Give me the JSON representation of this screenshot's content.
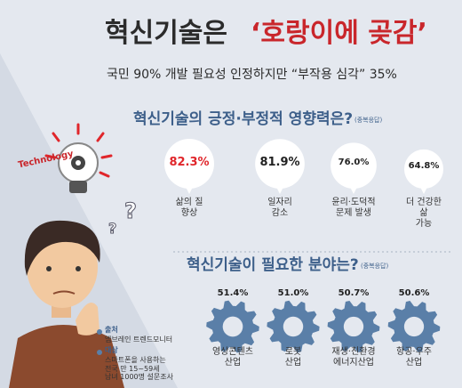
{
  "header": {
    "title_main": "혁신기술은",
    "title_quote": "‘호랑이에 곶감’",
    "subtitle": "국민 90% 개발 필요성 인정하지만 “부작용 심각” 35%"
  },
  "illustration": {
    "label": "Technology"
  },
  "notes": {
    "source_label": "출처",
    "source": "엠브레인 트렌드모니터",
    "target_label": "대상",
    "target": "스마트폰을 사용하는\n전국 만 15~59세\n남녀 1000명 설문조사"
  },
  "chart_data": [
    {
      "type": "bubble",
      "title": "혁신기술의 긍정·부정적 영향력은?",
      "note": "(중복응답)",
      "categories": [
        "삶의 질\n향상",
        "일자리\n감소",
        "윤리·도덕적\n문제 발생",
        "더 건강한 삶\n가능"
      ],
      "values": [
        82.3,
        81.9,
        76.0,
        64.8
      ],
      "value_labels": [
        "82.3%",
        "81.9%",
        "76.0%",
        "64.8%"
      ],
      "color": "#ffffff",
      "highlight_color": "#e0262b"
    },
    {
      "type": "gear",
      "title": "혁신기술이 필요한 분야는?",
      "note": "(중복응답)",
      "categories": [
        "영상콘텐츠\n산업",
        "로봇\n산업",
        "재생·친환경\n에너지산업",
        "항공·우주\n산업"
      ],
      "values": [
        51.4,
        51.0,
        50.7,
        50.6
      ],
      "value_labels": [
        "51.4%",
        "51.0%",
        "50.7%",
        "50.6%"
      ],
      "color": "#5a7fa8"
    }
  ]
}
